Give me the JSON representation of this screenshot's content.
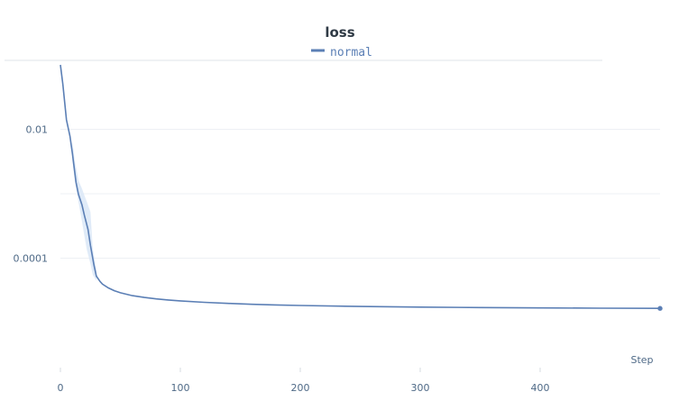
{
  "chart_data": {
    "type": "line",
    "title": "loss",
    "xlabel": "Step",
    "ylabel": "",
    "xlim": [
      0,
      500
    ],
    "ylim_log10": [
      -5.7,
      -1.0
    ],
    "yscale": "log",
    "grid": true,
    "legend_position": "top-center",
    "x_ticks": [
      {
        "value": 0,
        "label": "0"
      },
      {
        "value": 100,
        "label": "100"
      },
      {
        "value": 200,
        "label": "200"
      },
      {
        "value": 300,
        "label": "300"
      },
      {
        "value": 400,
        "label": "400"
      }
    ],
    "y_ticks": [
      {
        "value": 0.01,
        "label": "0.01"
      },
      {
        "value": 0.001,
        "label": ""
      },
      {
        "value": 0.0001,
        "label": "0.0001"
      }
    ],
    "series": [
      {
        "name": "normal",
        "color": "#5b7fb5",
        "band_color": "#dbe8f7",
        "x": [
          0,
          2,
          5,
          8,
          10,
          13,
          15,
          18,
          20,
          23,
          25,
          28,
          30,
          33,
          35,
          40,
          45,
          50,
          60,
          70,
          80,
          90,
          100,
          120,
          140,
          160,
          180,
          200,
          250,
          300,
          350,
          400,
          450,
          500
        ],
        "y": [
          0.1,
          0.05,
          0.014,
          0.0078,
          0.0042,
          0.0015,
          0.00098,
          0.00067,
          0.00046,
          0.00028,
          0.000158,
          7.8e-05,
          5.25e-05,
          4.35e-05,
          3.95e-05,
          3.45e-05,
          3.12e-05,
          2.9e-05,
          2.62e-05,
          2.45e-05,
          2.33e-05,
          2.24e-05,
          2.17e-05,
          2.06e-05,
          1.98e-05,
          1.92e-05,
          1.88e-05,
          1.84e-05,
          1.78e-05,
          1.74e-05,
          1.71e-05,
          1.69e-05,
          1.67e-05,
          1.66e-05
        ],
        "band_x": [
          10,
          12,
          15,
          18,
          20,
          22,
          25,
          27,
          30
        ],
        "band_upper": [
          0.0065,
          0.0032,
          0.0016,
          0.0012,
          0.00094,
          0.00075,
          0.00052,
          0.00014,
          6.5e-05
        ],
        "band_lower": [
          0.0032,
          0.0016,
          0.00075,
          0.00037,
          0.00022,
          0.000135,
          8.2e-05,
          5.5e-05,
          4.5e-05
        ]
      }
    ]
  }
}
